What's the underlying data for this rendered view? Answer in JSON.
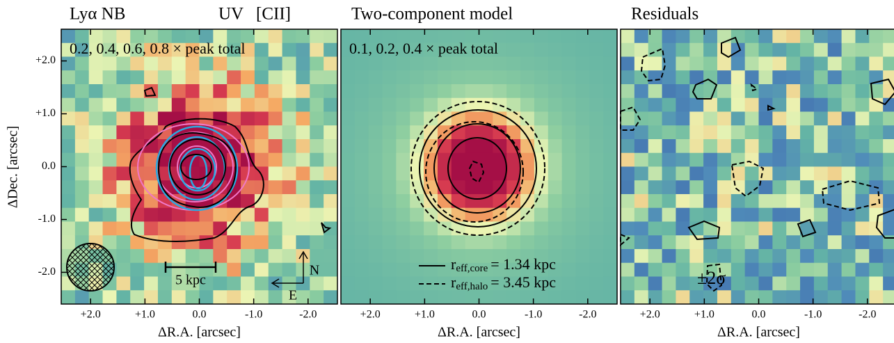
{
  "chart_data": [
    {
      "type": "heatmap",
      "title": "Lyα NB",
      "title_extra": [
        {
          "text": "UV",
          "color": "#29aae1"
        },
        {
          "text": "[CII]",
          "color": "#f078c8"
        }
      ],
      "annotation": "0.2, 0.4, 0.6, 0.8 × peak total",
      "scale_bar": "5 kpc",
      "compass": [
        "N",
        "E"
      ],
      "xlabel": "ΔR.A. [arcsec]",
      "ylabel": "ΔDec. [arcsec]",
      "xlim": [
        2.54,
        -2.54
      ],
      "ylim": [
        -2.6,
        2.6
      ],
      "xticks": [
        {
          "value": 2,
          "label": "+2.0"
        },
        {
          "value": 1,
          "label": "+1.0"
        },
        {
          "value": 0,
          "label": "0.0"
        },
        {
          "value": -1,
          "label": "-1.0"
        },
        {
          "value": -2,
          "label": "-2.0"
        }
      ],
      "yticks": [
        {
          "value": 2,
          "label": "+2.0"
        },
        {
          "value": 1,
          "label": "+1.0"
        },
        {
          "value": 0,
          "label": "0.0"
        },
        {
          "value": -1,
          "label": "-1.0"
        },
        {
          "value": -2,
          "label": "-2.0"
        }
      ]
    },
    {
      "type": "heatmap",
      "title": "Two-component model",
      "annotation": "0.1, 0.2, 0.4 × peak total",
      "legend": [
        {
          "symbol": "r",
          "subscript": "eff,core",
          "text": "= 1.34 kpc"
        },
        {
          "symbol": "r",
          "subscript": "eff,halo",
          "text": "= 3.45 kpc"
        }
      ],
      "xlabel": "ΔR.A. [arcsec]",
      "xlim": [
        2.54,
        -2.54
      ],
      "xticks": [
        {
          "value": 2,
          "label": "+2.0"
        },
        {
          "value": 1,
          "label": "+1.0"
        },
        {
          "value": 0,
          "label": "0.0"
        },
        {
          "value": -1,
          "label": "-1.0"
        },
        {
          "value": -2,
          "label": "-2.0"
        }
      ]
    },
    {
      "type": "heatmap",
      "title": "Residuals",
      "annotation": "±2σ",
      "xlabel": "ΔR.A. [arcsec]",
      "xlim": [
        2.54,
        -2.54
      ],
      "xticks": [
        {
          "value": 2,
          "label": "+2.0"
        },
        {
          "value": 1,
          "label": "+1.0"
        },
        {
          "value": 0,
          "label": "0.0"
        },
        {
          "value": -1,
          "label": "-1.0"
        },
        {
          "value": -2,
          "label": "-2.0"
        }
      ]
    }
  ]
}
